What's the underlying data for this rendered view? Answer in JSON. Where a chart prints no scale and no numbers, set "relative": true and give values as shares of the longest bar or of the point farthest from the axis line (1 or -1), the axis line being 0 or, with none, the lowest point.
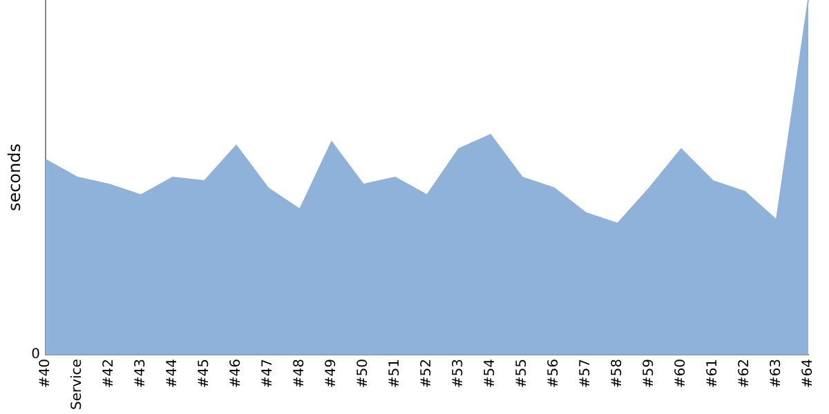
{
  "chart_data": {
    "type": "area",
    "ylabel": "seconds",
    "relative": true,
    "annotations": [
      "0"
    ],
    "grid": false,
    "legend": false,
    "categories": [
      "#40",
      "Service",
      "#42",
      "#43",
      "#44",
      "#45",
      "#46",
      "#47",
      "#48",
      "#49",
      "#50",
      "#51",
      "#52",
      "#53",
      "#54",
      "#55",
      "#56",
      "#57",
      "#58",
      "#59",
      "#60",
      "#61",
      "#62",
      "#63",
      "#64"
    ],
    "series": [
      {
        "color": "#8fb2db",
        "values": [
          0.55,
          0.5,
          0.48,
          0.45,
          0.5,
          0.49,
          0.59,
          0.47,
          0.41,
          0.6,
          0.48,
          0.5,
          0.45,
          0.58,
          0.62,
          0.5,
          0.47,
          0.4,
          0.37,
          0.47,
          0.58,
          0.49,
          0.46,
          0.38,
          1
        ]
      }
    ]
  }
}
